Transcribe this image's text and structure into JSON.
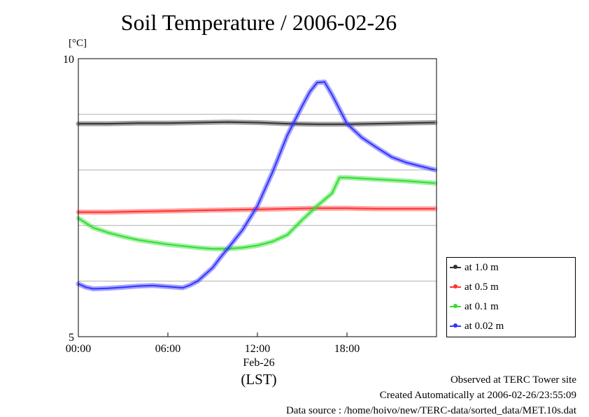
{
  "title": "Soil Temperature / 2006-02-26",
  "unit_label": "[°C]",
  "x_date_label": "Feb-26",
  "x_tz_label": "(LST)",
  "footer": {
    "line1": "Observed at TERC Tower site",
    "line2": "Created Automatically at 2006-02-26/23:55:09",
    "line3": "Data source : /home/hoivo/new/TERC-data/sorted_data/MET.10s.dat"
  },
  "chart_data": {
    "type": "line",
    "title": "Soil Temperature / 2006-02-26",
    "xlabel": "(LST)",
    "ylabel": "[°C]",
    "xlim": [
      0,
      24
    ],
    "ylim": [
      5,
      10
    ],
    "x_ticks": [
      {
        "value": 0,
        "label": "00:00"
      },
      {
        "value": 6,
        "label": "06:00"
      },
      {
        "value": 12,
        "label": "12:00"
      },
      {
        "value": 18,
        "label": "18:00"
      }
    ],
    "y_ticks": [
      {
        "value": 5,
        "label": "5"
      },
      {
        "value": 10,
        "label": "10"
      }
    ],
    "y_grid": [
      6,
      7,
      8,
      9
    ],
    "legend_position": "right",
    "series": [
      {
        "name": "at 1.0 m",
        "color": "#333333",
        "x": [
          0,
          2,
          4,
          6,
          8,
          10,
          12,
          14,
          16,
          18,
          20,
          22,
          23.9
        ],
        "y": [
          8.83,
          8.83,
          8.84,
          8.84,
          8.85,
          8.86,
          8.85,
          8.83,
          8.82,
          8.82,
          8.83,
          8.84,
          8.85
        ]
      },
      {
        "name": "at 0.5 m",
        "color": "#ff3333",
        "x": [
          0,
          2,
          4,
          6,
          8,
          10,
          12,
          14,
          16,
          18,
          20,
          22,
          23.9
        ],
        "y": [
          7.24,
          7.24,
          7.25,
          7.26,
          7.27,
          7.28,
          7.29,
          7.3,
          7.31,
          7.31,
          7.3,
          7.3,
          7.3
        ]
      },
      {
        "name": "at 0.1 m",
        "color": "#33dd33",
        "x": [
          0,
          1,
          2,
          3,
          4,
          5,
          6,
          7,
          8,
          9,
          10,
          11,
          12,
          13,
          14,
          15,
          16,
          17,
          17.5,
          18,
          20,
          22,
          23.9
        ],
        "y": [
          7.13,
          6.96,
          6.87,
          6.8,
          6.74,
          6.7,
          6.66,
          6.63,
          6.6,
          6.58,
          6.58,
          6.6,
          6.64,
          6.71,
          6.83,
          7.1,
          7.35,
          7.58,
          7.86,
          7.86,
          7.83,
          7.8,
          7.76
        ]
      },
      {
        "name": "at 0.02 m",
        "color": "#3333ff",
        "x": [
          0,
          0.5,
          1,
          2,
          3,
          4,
          5,
          6,
          7,
          7.5,
          8,
          9,
          9.5,
          10,
          11,
          12,
          13,
          14,
          15,
          15.5,
          16,
          16.5,
          17,
          18,
          19,
          20,
          21,
          22,
          23,
          23.9
        ],
        "y": [
          5.95,
          5.89,
          5.86,
          5.87,
          5.89,
          5.91,
          5.92,
          5.9,
          5.88,
          5.93,
          6.0,
          6.24,
          6.42,
          6.58,
          6.92,
          7.35,
          7.95,
          8.62,
          9.15,
          9.4,
          9.57,
          9.58,
          9.35,
          8.83,
          8.58,
          8.4,
          8.23,
          8.13,
          8.06,
          8.0
        ]
      }
    ]
  }
}
